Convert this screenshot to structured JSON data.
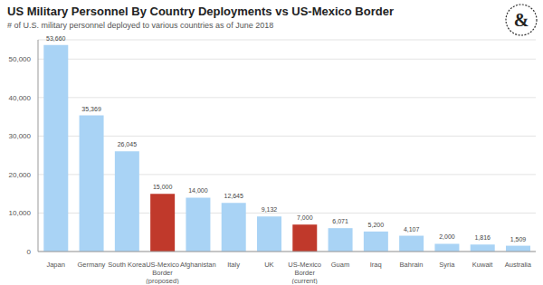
{
  "chart_data": {
    "type": "bar",
    "title": "US Military Personnel By Country Deployments vs US-Mexico Border",
    "subtitle": "# of U.S. military personnel deployed to various countries as of June 2018",
    "logo": "&",
    "categories": [
      "Japan",
      "Germany",
      "South Korea",
      "US-Mexico Border (proposed)",
      "Afghanistan",
      "Italy",
      "UK",
      "US-Mexico Border (current)",
      "Guam",
      "Iraq",
      "Bahrain",
      "Syria",
      "Kuwait",
      "Australia"
    ],
    "values": [
      53660,
      35369,
      26045,
      15000,
      14000,
      12645,
      9132,
      7000,
      6071,
      5200,
      4107,
      2000,
      1816,
      1509
    ],
    "value_labels": [
      "53,660",
      "35,369",
      "26,045",
      "15,000",
      "14,000",
      "12,645",
      "9,132",
      "7,000",
      "6,071",
      "5,200",
      "4,107",
      "2,000",
      "1,816",
      "1,509"
    ],
    "colors": [
      "#a9d3f5",
      "#a9d3f5",
      "#a9d3f5",
      "#c0392b",
      "#a9d3f5",
      "#a9d3f5",
      "#a9d3f5",
      "#c0392b",
      "#a9d3f5",
      "#a9d3f5",
      "#a9d3f5",
      "#a9d3f5",
      "#a9d3f5",
      "#a9d3f5"
    ],
    "ylim": [
      0,
      55000
    ],
    "yticks": [
      0,
      {
        "value": 10000,
        "label": "10,000"
      },
      {
        "value": 20000,
        "label": "20,000"
      },
      {
        "value": 30000,
        "label": "30,000"
      },
      {
        "value": 40000,
        "label": "40,000"
      },
      {
        "value": 50000,
        "label": "50,000"
      }
    ],
    "grid": true,
    "data_labels": true
  }
}
